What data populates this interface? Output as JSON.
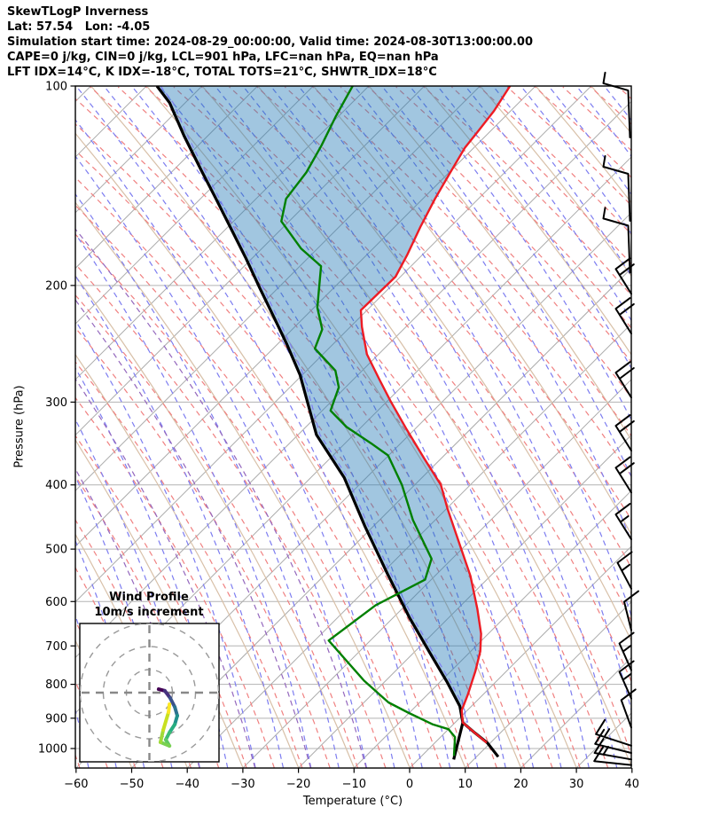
{
  "header": {
    "title": "SkewTLogP Inverness",
    "location_line": "Lat: 57.54   Lon: -4.05",
    "time_line": "Simulation start time: 2024-08-29_00:00:00, Valid time: 2024-08-30T13:00:00.00",
    "indices_line1": "CAPE=0 j/kg, CIN=0 j/kg, LCL=901 hPa, LFC=nan hPa, EQ=nan hPa",
    "indices_line2": "LFT IDX=14°C, K IDX=-18°C, TOTAL TOTS=21°C, SHWTR_IDX=18°C"
  },
  "chart_data": {
    "type": "line",
    "subtype": "skewT-logP sounding",
    "xlabel": "Temperature (°C)",
    "ylabel": "Pressure (hPa)",
    "x_ticks": [
      -60,
      -50,
      -40,
      -30,
      -20,
      -10,
      0,
      10,
      20,
      30,
      40
    ],
    "x_tick_labels": [
      "−60",
      "−50",
      "−40",
      "−30",
      "−20",
      "−10",
      "0",
      "10",
      "20",
      "30",
      "40"
    ],
    "y_ticks": [
      100,
      200,
      300,
      400,
      500,
      600,
      700,
      800,
      900,
      1000
    ],
    "y_tick_labels": [
      "100",
      "200",
      "300",
      "400",
      "500",
      "600",
      "700",
      "800",
      "900",
      "1000"
    ],
    "x_range": [
      -60,
      40
    ],
    "y_range": [
      100,
      1050
    ],
    "y_scale": "log",
    "skew_deg": 45,
    "grid": {
      "isotherm_color": "#ababab",
      "pressure_line_color": "#b3b3b3",
      "dry_adiabat_solid_color": "#d8c0a8",
      "dry_adiabat_dashed_color": "#f08080",
      "moist_adiabat_dashed_color": "#7d7df0",
      "mixing_line_dashed_color": "#9467bd"
    },
    "series": [
      {
        "name": "temperature",
        "color": "#ed1c24",
        "width": 2.4,
        "points": [
          [
            100,
            -104.6
          ],
          [
            109,
            -103.0
          ],
          [
            117,
            -102.2
          ],
          [
            124,
            -101.6
          ],
          [
            135,
            -99.8
          ],
          [
            148,
            -97.8
          ],
          [
            163,
            -95.4
          ],
          [
            180,
            -92.7
          ],
          [
            194,
            -90.9
          ],
          [
            218,
            -91.1
          ],
          [
            231,
            -87.9
          ],
          [
            254,
            -82.1
          ],
          [
            277,
            -75.4
          ],
          [
            299,
            -69.4
          ],
          [
            330,
            -61.4
          ],
          [
            366,
            -52.8
          ],
          [
            400,
            -45.3
          ],
          [
            434,
            -39.9
          ],
          [
            497,
            -30.5
          ],
          [
            549,
            -23.6
          ],
          [
            616,
            -16.4
          ],
          [
            671,
            -11.3
          ],
          [
            713,
            -8.3
          ],
          [
            764,
            -5.6
          ],
          [
            830,
            -2.7
          ],
          [
            876,
            -1.0
          ],
          [
            914,
            1.4
          ],
          [
            947,
            5.4
          ],
          [
            980,
            9.3
          ]
        ]
      },
      {
        "name": "dewpoint",
        "color": "#008000",
        "width": 2.4,
        "points": [
          [
            100,
            -132.9
          ],
          [
            111,
            -130.5
          ],
          [
            123,
            -127.8
          ],
          [
            135,
            -125.7
          ],
          [
            148,
            -124.6
          ],
          [
            160,
            -121.4
          ],
          [
            176,
            -112.9
          ],
          [
            187,
            -106.2
          ],
          [
            216,
            -99.4
          ],
          [
            233,
            -94.6
          ],
          [
            249,
            -92.5
          ],
          [
            269,
            -84.8
          ],
          [
            285,
            -81.2
          ],
          [
            309,
            -78.5
          ],
          [
            327,
            -72.7
          ],
          [
            346,
            -65.4
          ],
          [
            361,
            -60.1
          ],
          [
            400,
            -52.3
          ],
          [
            452,
            -44.0
          ],
          [
            517,
            -33.7
          ],
          [
            556,
            -31.1
          ],
          [
            608,
            -35.4
          ],
          [
            687,
            -37.5
          ],
          [
            790,
            -23.9
          ],
          [
            852,
            -15.6
          ],
          [
            884,
            -10.0
          ],
          [
            919,
            -3.8
          ],
          [
            935,
            0.0
          ],
          [
            961,
            2.6
          ],
          [
            1026,
            5.8
          ]
        ]
      },
      {
        "name": "parcel_profile",
        "color": "#000000",
        "width": 3.2,
        "points": [
          [
            100,
            -168.1
          ],
          [
            106,
            -162.8
          ],
          [
            119,
            -154.2
          ],
          [
            134,
            -145.0
          ],
          [
            148,
            -137.2
          ],
          [
            164,
            -129.2
          ],
          [
            182,
            -121.1
          ],
          [
            202,
            -113.2
          ],
          [
            223,
            -105.6
          ],
          [
            245,
            -98.4
          ],
          [
            273,
            -90.4
          ],
          [
            336,
            -76.7
          ],
          [
            390,
            -64.0
          ],
          [
            462,
            -51.5
          ],
          [
            545,
            -38.9
          ],
          [
            635,
            -27.0
          ],
          [
            716,
            -17.2
          ],
          [
            793,
            -8.8
          ],
          [
            863,
            -2.1
          ],
          [
            914,
            1.4
          ]
        ],
        "surface_branch_right": [
          [
            914,
            1.4
          ],
          [
            947,
            5.4
          ],
          [
            981,
            9.5
          ],
          [
            1029,
            13.9
          ]
        ],
        "surface_branch_left": [
          [
            914,
            1.4
          ],
          [
            972,
            3.8
          ],
          [
            1039,
            6.4
          ]
        ]
      }
    ],
    "shaded_region": {
      "name": "parcel-environment area",
      "between": [
        "parcel_profile",
        "temperature"
      ],
      "from_pressure": 914,
      "to_pressure": 100,
      "fill": "rgba(31,119,180,0.42)"
    },
    "wind_barbs": {
      "station_x_note": "plotted along right axis",
      "color": "#000000",
      "barbs": [
        {
          "p": 110,
          "tilt": 3,
          "feathers": 1.5,
          "style": "A"
        },
        {
          "p": 147,
          "tilt": 3,
          "feathers": 1.5,
          "style": "A"
        },
        {
          "p": 176,
          "tilt": 6,
          "feathers": 1.5,
          "style": "A"
        },
        {
          "p": 196,
          "tilt": 32,
          "feathers": 2,
          "style": "B"
        },
        {
          "p": 225,
          "tilt": 32,
          "feathers": 2,
          "style": "B"
        },
        {
          "p": 281,
          "tilt": 32,
          "feathers": 2,
          "style": "B"
        },
        {
          "p": 338,
          "tilt": 32,
          "feathers": 2,
          "style": "B"
        },
        {
          "p": 391,
          "tilt": 32,
          "feathers": 2,
          "style": "B"
        },
        {
          "p": 460,
          "tilt": 32,
          "feathers": 1.5,
          "style": "B"
        },
        {
          "p": 546,
          "tilt": 28,
          "feathers": 1.5,
          "style": "B"
        },
        {
          "p": 631,
          "tilt": 14,
          "feathers": 1,
          "style": "B"
        },
        {
          "p": 725,
          "tilt": 24,
          "feathers": 1.5,
          "style": "B"
        },
        {
          "p": 800,
          "tilt": 24,
          "feathers": 1.5,
          "style": "B"
        },
        {
          "p": 885,
          "tilt": 20,
          "feathers": 1,
          "style": "B"
        },
        {
          "p": 978,
          "tilt": 72,
          "feathers": 1.5,
          "style": "C"
        },
        {
          "p": 1003,
          "tilt": 76,
          "feathers": 1,
          "style": "C"
        },
        {
          "p": 1026,
          "tilt": 80,
          "feathers": 1.5,
          "style": "C"
        },
        {
          "p": 1046,
          "tilt": 84,
          "feathers": 1,
          "style": "C"
        }
      ]
    },
    "hodograph_inset": {
      "title_line1": "Wind Profile",
      "title_line2": "10m/s increment",
      "ring_radii_ms": [
        10,
        20,
        30
      ],
      "trace_uv_ms": [
        [
          4.0,
          1.5
        ],
        [
          6.7,
          0.8
        ],
        [
          9.0,
          -2.3
        ],
        [
          11.0,
          -6.2
        ],
        [
          12.1,
          -10.0
        ],
        [
          11.0,
          -13.8
        ],
        [
          8.7,
          -17.3
        ],
        [
          7.1,
          -20.4
        ],
        [
          8.7,
          -23.1
        ],
        [
          4.8,
          -21.5
        ],
        [
          6.0,
          -16.2
        ],
        [
          8.3,
          -8.5
        ],
        [
          8.7,
          -5.0
        ]
      ],
      "trace_segment_colors": [
        "#440154",
        "#46317e",
        "#3b528b",
        "#2c728e",
        "#21918c",
        "#27ad81",
        "#3dbc74",
        "#5ec962",
        "#7ad151",
        "#a0da39",
        "#c8e020",
        "#fde725"
      ]
    }
  }
}
